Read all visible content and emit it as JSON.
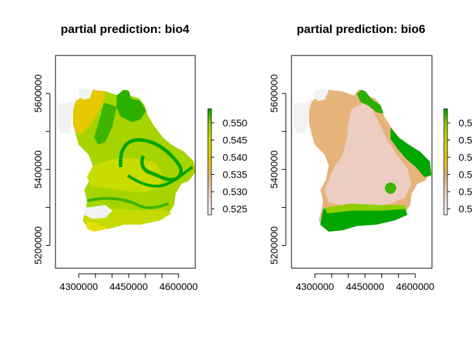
{
  "chart_data": [
    {
      "type": "heatmap",
      "title": "partial prediction: bio4",
      "xlabel": "",
      "ylabel": "",
      "x_ticks": [
        "4300000",
        "4450000",
        "4600000"
      ],
      "y_ticks": [
        "5200000",
        "5400000",
        "5600000"
      ],
      "xlim": [
        4230000,
        4650000
      ],
      "ylim": [
        5140000,
        5700000
      ],
      "legend": {
        "placement": "right",
        "labels": [
          "0.550",
          "0.545",
          "0.540",
          "0.535",
          "0.530",
          "0.525"
        ],
        "values": [
          0.55,
          0.545,
          0.54,
          0.535,
          0.53,
          0.525
        ],
        "range": [
          0.5225,
          0.5525
        ],
        "colors": [
          "#f2f2f2",
          "#edd9cf",
          "#e6b47b",
          "#e6c600",
          "#c6da00",
          "#8fce00",
          "#00a600"
        ]
      }
    },
    {
      "type": "heatmap",
      "title": "partial prediction: bio6",
      "xlabel": "",
      "ylabel": "",
      "x_ticks": [
        "4300000",
        "4450000",
        "4600000"
      ],
      "y_ticks": [
        "5200000",
        "5400000",
        "5600000"
      ],
      "xlim": [
        4230000,
        4650000
      ],
      "ylim": [
        5140000,
        5700000
      ],
      "legend": {
        "placement": "right",
        "labels": [
          "0.5",
          "0.5",
          "0.5",
          "0.5",
          "0.5",
          "0.5"
        ],
        "colors": [
          "#f2f2f2",
          "#edd9cf",
          "#e6b47b",
          "#e6c600",
          "#c6da00",
          "#8fce00",
          "#00a600"
        ]
      }
    }
  ]
}
